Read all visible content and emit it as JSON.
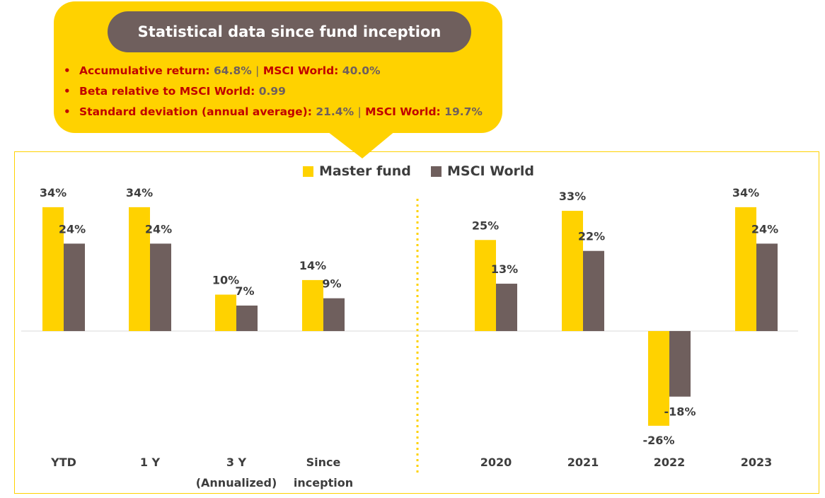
{
  "callout": {
    "title": "Statistical data since fund inception",
    "stats": [
      {
        "label": "Accumulative return:",
        "value": "64.8%",
        "separator": "|",
        "label2": "MSCI World:",
        "value2": "40.0%"
      },
      {
        "label": "Beta relative to MSCI World:",
        "value": "0.99"
      },
      {
        "label": "Standard deviation (annual average):",
        "value": "21.4%",
        "separator": "|",
        "label2": "MSCI World:",
        "value2": "19.7%"
      }
    ]
  },
  "colors": {
    "master": "#FFD200",
    "msci": "#6F5F5D",
    "label_red": "#C00000",
    "value_gray": "#6F5F5D"
  },
  "chart_data": {
    "type": "bar",
    "legend": [
      "Master fund",
      "MSCI World"
    ],
    "legend_position": "top-center",
    "groups": [
      {
        "category": [
          "YTD"
        ],
        "master": 34,
        "msci": 24,
        "master_label": "34%",
        "msci_label": "24%"
      },
      {
        "category": [
          "1 Y"
        ],
        "master": 34,
        "msci": 24,
        "master_label": "34%",
        "msci_label": "24%"
      },
      {
        "category": [
          "3 Y",
          "(Annualized)"
        ],
        "master": 10,
        "msci": 7,
        "master_label": "10%",
        "msci_label": "7%"
      },
      {
        "category": [
          "Since",
          "inception"
        ],
        "master": 14,
        "msci": 9,
        "master_label": "14%",
        "msci_label": "9%"
      },
      {
        "category": [
          "2020"
        ],
        "master": 25,
        "msci": 13,
        "master_label": "25%",
        "msci_label": "13%"
      },
      {
        "category": [
          "2021"
        ],
        "master": 33,
        "msci": 22,
        "master_label": "33%",
        "msci_label": "22%"
      },
      {
        "category": [
          "2022"
        ],
        "master": -26,
        "msci": -18,
        "master_label": "-26%",
        "msci_label": "-18%"
      },
      {
        "category": [
          "2023"
        ],
        "master": 34,
        "msci": 24,
        "master_label": "34%",
        "msci_label": "24%"
      }
    ],
    "divider_after_index": 3,
    "ylim": [
      -26,
      34
    ],
    "grid": false
  }
}
